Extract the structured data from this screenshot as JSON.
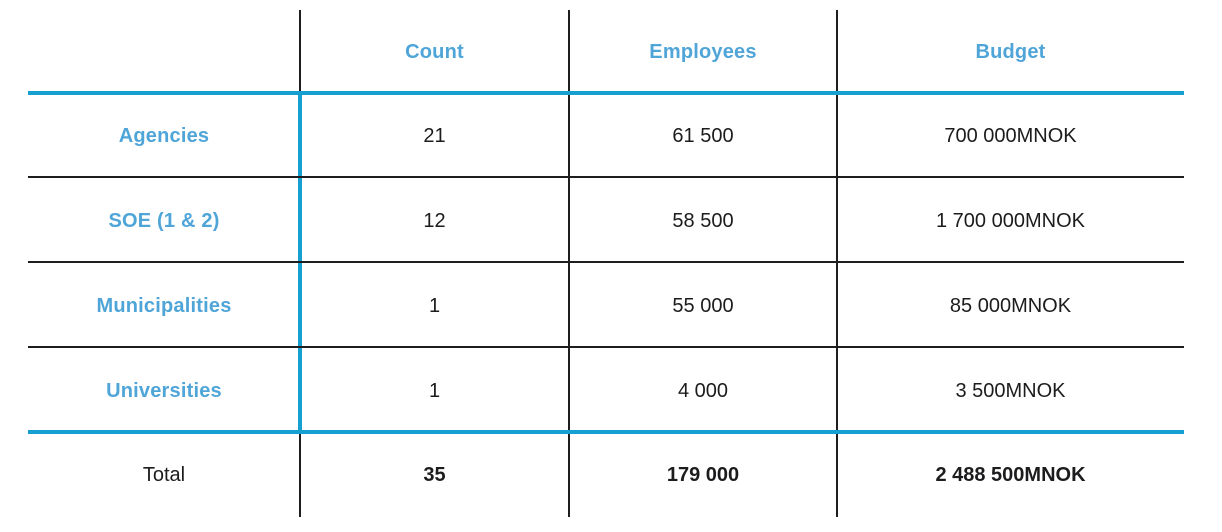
{
  "colors": {
    "accent_text": "#4fa5d8",
    "accent_line": "#16a0d1",
    "text": "#1c1c1e"
  },
  "table": {
    "columns": [
      "",
      "Count",
      "Employees",
      "Budget"
    ],
    "rows": [
      {
        "label": "Agencies",
        "count": "21",
        "employees": "61 500",
        "budget": "700 000MNOK"
      },
      {
        "label": "SOE (1 & 2)",
        "count": "12",
        "employees": "58 500",
        "budget": "1 700 000MNOK"
      },
      {
        "label": "Municipalities",
        "count": "1",
        "employees": "55 000",
        "budget": "85 000MNOK"
      },
      {
        "label": "Universities",
        "count": "1",
        "employees": "4 000",
        "budget": "3 500MNOK"
      }
    ],
    "total": {
      "label": "Total",
      "count": "35",
      "employees": "179 000",
      "budget": "2 488 500MNOK"
    }
  },
  "chart_data": {
    "type": "table",
    "title": "",
    "columns": [
      "",
      "Count",
      "Employees",
      "Budget"
    ],
    "rows": [
      {
        "category": "Agencies",
        "count": 21,
        "employees": 61500,
        "budget_mnok": 700000
      },
      {
        "category": "SOE (1 & 2)",
        "count": 12,
        "employees": 58500,
        "budget_mnok": 1700000
      },
      {
        "category": "Municipalities",
        "count": 1,
        "employees": 55000,
        "budget_mnok": 85000
      },
      {
        "category": "Universities",
        "count": 1,
        "employees": 4000,
        "budget_mnok": 3500
      }
    ],
    "total": {
      "category": "Total",
      "count": 35,
      "employees": 179000,
      "budget_mnok": 2488500
    },
    "budget_unit": "MNOK"
  }
}
